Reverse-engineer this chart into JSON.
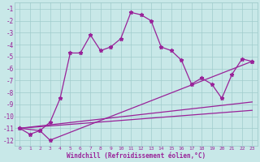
{
  "xlabel": "Windchill (Refroidissement éolien,°C)",
  "xlim": [
    -0.5,
    23.5
  ],
  "ylim": [
    -12.5,
    -0.5
  ],
  "yticks": [
    -1,
    -2,
    -3,
    -4,
    -5,
    -6,
    -7,
    -8,
    -9,
    -10,
    -11,
    -12
  ],
  "xticks": [
    0,
    1,
    2,
    3,
    4,
    5,
    6,
    7,
    8,
    9,
    10,
    11,
    12,
    13,
    14,
    15,
    16,
    17,
    18,
    19,
    20,
    21,
    22,
    23
  ],
  "bg_color": "#c8e8e8",
  "grid_color": "#a0cccc",
  "line_color": "#992299",
  "line1_x": [
    0,
    1,
    2,
    3,
    4,
    5,
    6,
    7,
    8,
    9,
    10,
    11,
    12,
    13,
    14,
    15,
    16,
    17,
    18,
    19,
    20,
    21,
    22,
    23
  ],
  "line1_y": [
    -11.0,
    -11.5,
    -11.2,
    -10.5,
    -8.5,
    -4.7,
    -4.7,
    -3.2,
    -4.5,
    -4.2,
    -3.5,
    -1.3,
    -1.5,
    -2.0,
    -4.2,
    -4.5,
    -5.3,
    -7.3,
    -6.8,
    -7.3,
    -8.5,
    -6.5,
    -5.2,
    -5.4
  ],
  "line2_x": [
    0,
    2,
    3,
    23
  ],
  "line2_y": [
    -11.0,
    -11.2,
    -12.0,
    -5.4
  ],
  "line3_x": [
    0,
    23
  ],
  "line3_y": [
    -11.0,
    -8.8
  ],
  "line4_x": [
    0,
    23
  ],
  "line4_y": [
    -11.0,
    -9.5
  ]
}
